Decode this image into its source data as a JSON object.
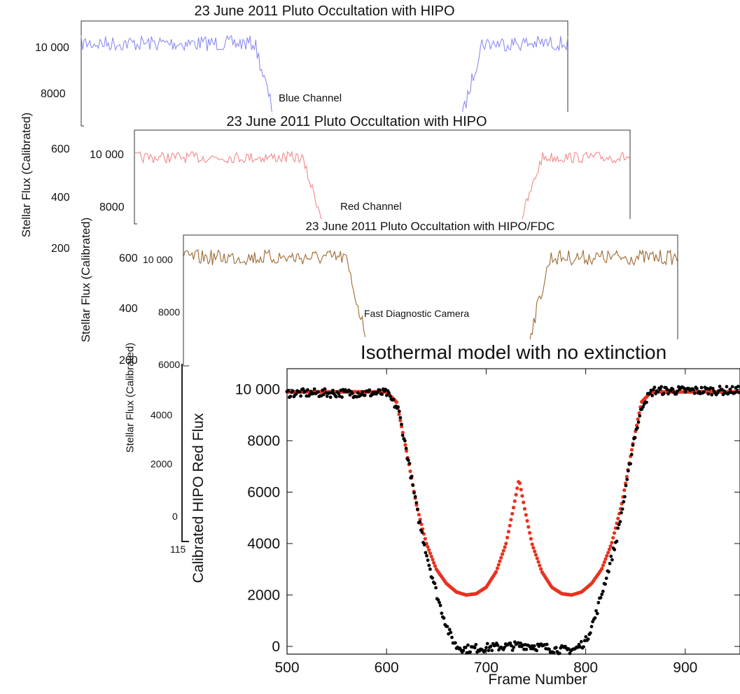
{
  "chart_data": [
    {
      "type": "line",
      "title": "23 June 2011 Pluto Occultation with HIPO",
      "annotation": "Blue Channel",
      "ylabel": "Stellar Flux (Calibrated)",
      "yticks": [
        "10 000",
        "8000",
        "600",
        "400",
        "200"
      ],
      "series": [
        {
          "name": "Blue Channel",
          "color": "#8c8cf2",
          "baseline": 10000,
          "floor": 7000,
          "ingress": 0.4,
          "egress": 0.78
        }
      ]
    },
    {
      "type": "line",
      "title": "23 June 2011 Pluto Occultation with HIPO",
      "annotation": "Red Channel",
      "ylabel": "Stellar Flux (Calibrated)",
      "yticks": [
        "10 000",
        "8000",
        "600",
        "400",
        "200"
      ],
      "series": [
        {
          "name": "Red Channel",
          "color": "#f08a8a",
          "baseline": 10000,
          "floor": 7000,
          "ingress": 0.38,
          "egress": 0.78
        }
      ]
    },
    {
      "type": "line",
      "title": "23 June 2011 Pluto Occultation with HIPO/FDC",
      "annotation": "Fast Diagnostic Camera",
      "ylabel": "Stellar Flux (Calibrated)",
      "yticks": [
        "10 000",
        "8000",
        "6000",
        "4000",
        "2000",
        "0"
      ],
      "xticks": [
        "115"
      ],
      "series": [
        {
          "name": "Fast Diagnostic Camera",
          "color": "#9b6a32",
          "baseline": 10000,
          "floor": 5000,
          "ingress": 0.37,
          "egress": 0.7
        }
      ]
    },
    {
      "type": "scatter",
      "title": "Isothermal model with no extinction",
      "xlabel": "Frame Number",
      "ylabel": "Calibrated HIPO Red Flux",
      "xlim": [
        500,
        955
      ],
      "ylim": [
        -300,
        10800
      ],
      "xticks": [
        500,
        600,
        700,
        800,
        900
      ],
      "yticks": [
        0,
        2000,
        4000,
        6000,
        8000,
        10000
      ],
      "ytick_labels": [
        "0",
        "2000",
        "4000",
        "6000",
        "8000",
        "10 000"
      ],
      "series": [
        {
          "name": "",
          "color": "#e8321e",
          "kind": "model",
          "points": [
            [
              500,
              9900
            ],
            [
              600,
              9900
            ],
            [
              610,
              9500
            ],
            [
              620,
              7600
            ],
            [
              630,
              5500
            ],
            [
              640,
              4000
            ],
            [
              650,
              3000
            ],
            [
              660,
              2450
            ],
            [
              670,
              2120
            ],
            [
              680,
              2000
            ],
            [
              690,
              2050
            ],
            [
              700,
              2300
            ],
            [
              710,
              2900
            ],
            [
              720,
              4000
            ],
            [
              727,
              5300
            ],
            [
              733,
              6500
            ],
            [
              739,
              5300
            ],
            [
              746,
              4000
            ],
            [
              756,
              2900
            ],
            [
              766,
              2300
            ],
            [
              776,
              2050
            ],
            [
              786,
              2000
            ],
            [
              796,
              2120
            ],
            [
              806,
              2450
            ],
            [
              816,
              3000
            ],
            [
              826,
              4000
            ],
            [
              836,
              5500
            ],
            [
              846,
              7600
            ],
            [
              856,
              9500
            ],
            [
              866,
              9900
            ],
            [
              955,
              9900
            ]
          ]
        },
        {
          "name": "",
          "color": "#000000",
          "kind": "data",
          "points": [
            [
              500,
              9850
            ],
            [
              600,
              9850
            ],
            [
              612,
              9200
            ],
            [
              622,
              7200
            ],
            [
              632,
              5000
            ],
            [
              642,
              3300
            ],
            [
              652,
              1800
            ],
            [
              662,
              600
            ],
            [
              670,
              0
            ],
            [
              680,
              -100
            ],
            [
              700,
              -50
            ],
            [
              720,
              0
            ],
            [
              740,
              50
            ],
            [
              760,
              -50
            ],
            [
              780,
              -150
            ],
            [
              790,
              -100
            ],
            [
              800,
              200
            ],
            [
              810,
              1200
            ],
            [
              820,
              2600
            ],
            [
              830,
              4000
            ],
            [
              840,
              6000
            ],
            [
              848,
              8000
            ],
            [
              858,
              9500
            ],
            [
              868,
              9950
            ],
            [
              955,
              9950
            ]
          ]
        }
      ]
    }
  ]
}
